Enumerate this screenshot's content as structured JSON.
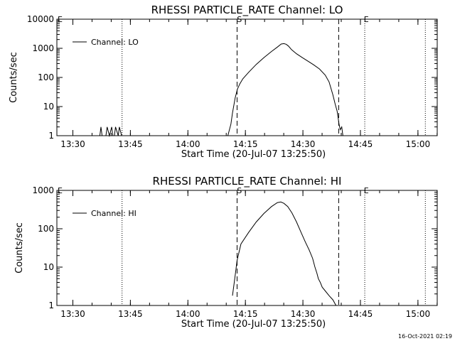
{
  "footer": {
    "timestamp": "16-Oct-2021 02:19"
  },
  "chart_data": [
    {
      "type": "line",
      "title": "RHESSI PARTICLE_RATE Channel: LO",
      "xlabel": "Start Time (20-Jul-07 13:25:50)",
      "ylabel": "Counts/sec",
      "yscale": "log",
      "ylim": [
        1,
        10000
      ],
      "yticks": [
        1,
        10,
        100,
        1000,
        10000
      ],
      "ytick_labels": [
        "1",
        "10",
        "100",
        "1000",
        "10000"
      ],
      "x_unit": "minutes after 13:25:50",
      "xlim": [
        0,
        99.2
      ],
      "xticks": [
        4.17,
        19.17,
        34.17,
        49.17,
        64.17,
        79.17,
        94.17
      ],
      "xtick_labels": [
        "13:30",
        "13:45",
        "14:00",
        "14:15",
        "14:30",
        "14:45",
        "15:00"
      ],
      "legend": {
        "label": "Channel: LO",
        "position": "top-left"
      },
      "grid": false,
      "dotted_lines_x": [
        17.0,
        80.3,
        96.1
      ],
      "dashed_lines_x": [
        47.0,
        73.5
      ],
      "markers": [
        {
          "label": "S",
          "x": 47.6
        },
        {
          "label": "E",
          "x": 80.7
        }
      ],
      "series": [
        {
          "name": "Channel: LO",
          "x": [
            11.2,
            11.5,
            11.8,
            12.4,
            12.8,
            13.1,
            13.7,
            14.3,
            14.6,
            15.0,
            15.3,
            16.0,
            16.3,
            16.9,
            17.2,
            44.6,
            45.4,
            45.8,
            46.5,
            47.1,
            47.7,
            48.5,
            50.0,
            52.0,
            54.0,
            56.0,
            57.5,
            58.5,
            59.2,
            59.8,
            60.4,
            61.2,
            62.5,
            64.0,
            65.5,
            67.0,
            68.5,
            70.0,
            71.0,
            72.0,
            72.6,
            73.1,
            73.6,
            73.9,
            74.3,
            74.6
          ],
          "y": [
            1,
            2,
            1,
            1,
            1,
            2,
            1,
            2,
            1,
            1,
            2,
            1,
            2,
            1,
            1,
            1,
            2.5,
            6,
            20,
            40,
            60,
            90,
            150,
            280,
            480,
            780,
            1100,
            1400,
            1450,
            1380,
            1200,
            900,
            650,
            480,
            360,
            270,
            195,
            120,
            70,
            25,
            12,
            7,
            2.5,
            1.6,
            2,
            1
          ]
        }
      ]
    },
    {
      "type": "line",
      "title": "RHESSI PARTICLE_RATE Channel: HI",
      "xlabel": "Start Time (20-Jul-07 13:25:50)",
      "ylabel": "Counts/sec",
      "yscale": "log",
      "ylim": [
        1,
        1000
      ],
      "yticks": [
        1,
        10,
        100,
        1000
      ],
      "ytick_labels": [
        "1",
        "10",
        "100",
        "1000"
      ],
      "x_unit": "minutes after 13:25:50",
      "xlim": [
        0,
        99.2
      ],
      "xticks": [
        4.17,
        19.17,
        34.17,
        49.17,
        64.17,
        79.17,
        94.17
      ],
      "xtick_labels": [
        "13:30",
        "13:45",
        "14:00",
        "14:15",
        "14:30",
        "14:45",
        "15:00"
      ],
      "legend": {
        "label": "Channel: HI",
        "position": "top-left"
      },
      "grid": false,
      "dotted_lines_x": [
        17.0,
        80.3,
        96.1
      ],
      "dashed_lines_x": [
        47.0,
        73.5
      ],
      "markers": [
        {
          "label": "S",
          "x": 47.6
        },
        {
          "label": "E",
          "x": 80.7
        }
      ],
      "series": [
        {
          "name": "Channel: HI",
          "x": [
            45.8,
            46.4,
            47.0,
            48.0,
            50.0,
            52.0,
            54.0,
            56.0,
            57.5,
            58.4,
            59.2,
            60.2,
            61.3,
            62.5,
            63.7,
            64.8,
            65.8,
            66.7,
            67.3,
            67.8,
            68.2,
            68.7,
            69.2,
            70.0,
            71.0,
            72.0,
            72.8
          ],
          "y": [
            1.8,
            5,
            15,
            40,
            80,
            150,
            250,
            380,
            480,
            500,
            460,
            380,
            260,
            150,
            80,
            45,
            28,
            17,
            10,
            7,
            5,
            4,
            3,
            2.4,
            1.8,
            1.4,
            1
          ]
        }
      ]
    }
  ]
}
